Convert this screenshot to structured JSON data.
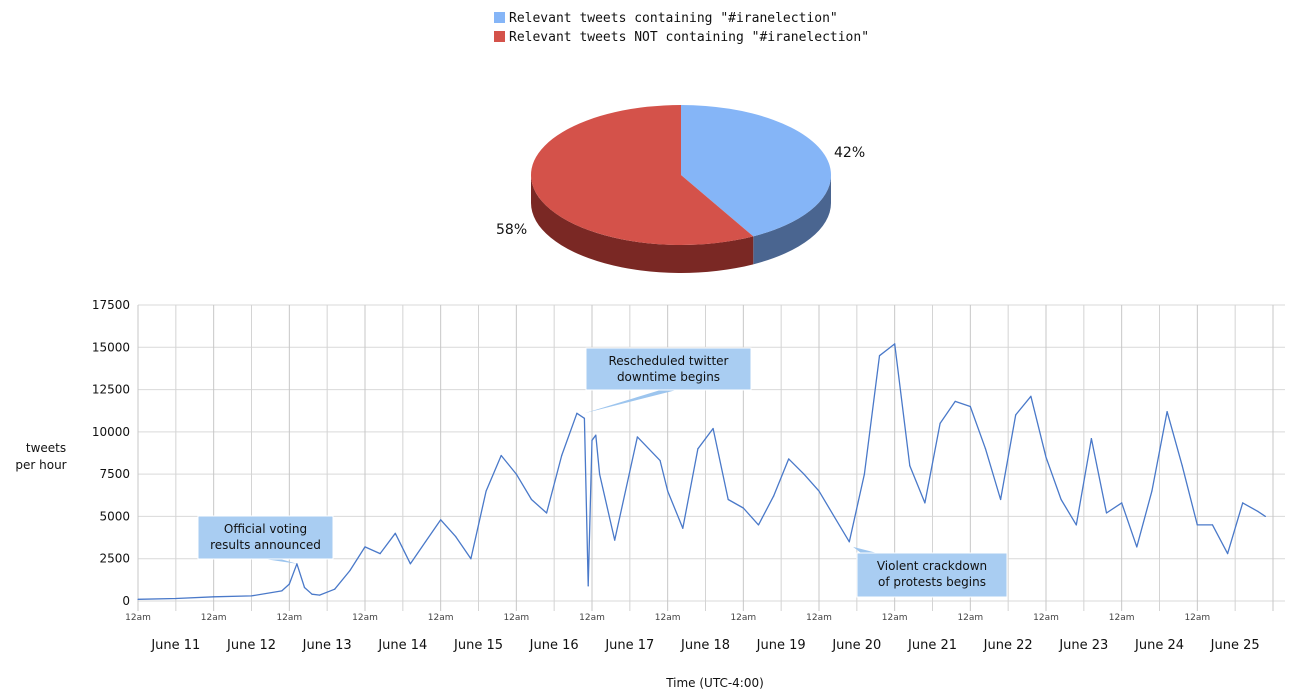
{
  "chart_data": [
    {
      "type": "pie",
      "legend": [
        "Relevant tweets containing \"#iranelection\"",
        "Relevant tweets NOT containing \"#iranelection\""
      ],
      "slices": [
        {
          "name": "Relevant tweets containing \"#iranelection\"",
          "value": 42,
          "label": "42%",
          "color": "#85b5f7",
          "side_color": "#4a6590"
        },
        {
          "name": "Relevant tweets NOT containing \"#iranelection\"",
          "value": 58,
          "label": "58%",
          "color": "#d4524a",
          "side_color": "#7a2824"
        }
      ]
    },
    {
      "type": "line",
      "ylabel": [
        "tweets",
        "per hour"
      ],
      "xlabel": "Time (UTC-4:00)",
      "ylim": [
        0,
        17500
      ],
      "yticks": [
        0,
        2500,
        5000,
        7500,
        10000,
        12500,
        15000,
        17500
      ],
      "xlim": [
        0,
        15
      ],
      "grid": true,
      "midnight_tick_label": "12am",
      "day_labels": [
        "June 11",
        "June 12",
        "June 13",
        "June 14",
        "June 15",
        "June 16",
        "June 17",
        "June 18",
        "June 19",
        "June 20",
        "June 21",
        "June 22",
        "June 23",
        "June 24",
        "June 25"
      ],
      "series": [
        {
          "name": "tweets per hour",
          "color": "#4a79c9",
          "x": [
            0,
            0.5,
            1,
            1.5,
            1.9,
            2.0,
            2.1,
            2.2,
            2.3,
            2.4,
            2.6,
            2.8,
            3.0,
            3.2,
            3.4,
            3.6,
            3.8,
            4.0,
            4.2,
            4.4,
            4.6,
            4.8,
            5.0,
            5.2,
            5.4,
            5.6,
            5.8,
            5.9,
            5.95,
            6.0,
            6.05,
            6.1,
            6.3,
            6.6,
            6.9,
            7.0,
            7.2,
            7.4,
            7.6,
            7.8,
            8.0,
            8.2,
            8.4,
            8.6,
            8.8,
            9.0,
            9.2,
            9.4,
            9.6,
            9.8,
            10.0,
            10.2,
            10.4,
            10.6,
            10.8,
            11.0,
            11.2,
            11.4,
            11.6,
            11.8,
            12.0,
            12.2,
            12.4,
            12.6,
            12.8,
            13.0,
            13.2,
            13.4,
            13.6,
            13.8,
            14.0,
            14.2,
            14.4,
            14.6,
            14.8,
            14.9
          ],
          "values": [
            100,
            150,
            250,
            300,
            600,
            1000,
            2200,
            800,
            400,
            350,
            700,
            1800,
            3200,
            2800,
            4000,
            2200,
            3500,
            4800,
            3800,
            2500,
            6500,
            8600,
            7500,
            6000,
            5200,
            8600,
            11100,
            10800,
            900,
            9500,
            9800,
            7500,
            3600,
            9700,
            8300,
            6500,
            4300,
            9000,
            10200,
            6000,
            5500,
            4500,
            6200,
            8400,
            7500,
            6500,
            5000,
            3500,
            7500,
            14500,
            15200,
            8000,
            5800,
            10500,
            11800,
            11500,
            9000,
            6000,
            11000,
            12100,
            8500,
            6000,
            4500,
            9600,
            5200,
            5800,
            3200,
            6500,
            11200,
            8000,
            4500,
            4500,
            2800,
            5800,
            5300,
            5000
          ]
        }
      ],
      "annotations": [
        {
          "text": [
            "Official voting",
            "results announced"
          ],
          "at_x": 2.1,
          "at_y": 2200
        },
        {
          "text": [
            "Rescheduled twitter",
            "downtime begins"
          ],
          "at_x": 5.9,
          "at_y": 11100
        },
        {
          "text": [
            "Violent crackdown",
            "of protests begins"
          ],
          "at_x": 9.45,
          "at_y": 3200
        }
      ]
    }
  ]
}
